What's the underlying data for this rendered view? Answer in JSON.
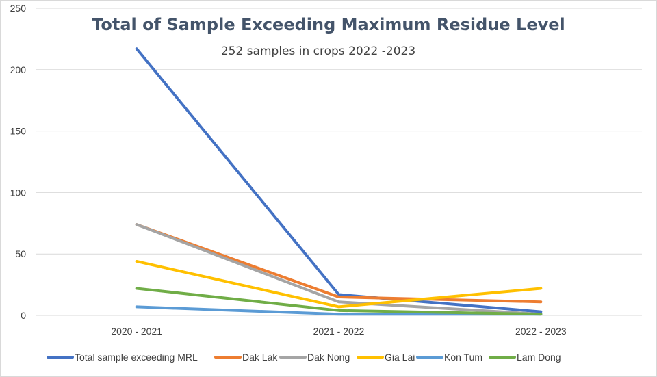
{
  "chart_data": {
    "type": "line",
    "title": "Total of Sample Exceeding Maximum Residue Level",
    "subtitle": "252 samples in crops 2022 -2023",
    "categories": [
      "2020 - 2021",
      "2021 - 2022",
      "2022 - 2023"
    ],
    "ylim": [
      0,
      250
    ],
    "yticks": [
      0,
      50,
      100,
      150,
      200,
      250
    ],
    "grid": true,
    "legend_position": "bottom",
    "series": [
      {
        "name": "Total sample exceeding MRL",
        "color": "#4472c4",
        "values": [
          217,
          17,
          3
        ]
      },
      {
        "name": "Dak Lak",
        "color": "#ed7d31",
        "values": [
          74,
          15,
          11
        ]
      },
      {
        "name": "Dak Nong",
        "color": "#a5a5a5",
        "values": [
          74,
          11,
          1
        ]
      },
      {
        "name": "Gia Lai",
        "color": "#ffc000",
        "values": [
          44,
          7,
          22
        ]
      },
      {
        "name": "Kon Tum",
        "color": "#5b9bd5",
        "values": [
          7,
          1,
          1
        ]
      },
      {
        "name": "Lam Dong",
        "color": "#70ad47",
        "values": [
          22,
          4,
          1
        ]
      }
    ]
  }
}
